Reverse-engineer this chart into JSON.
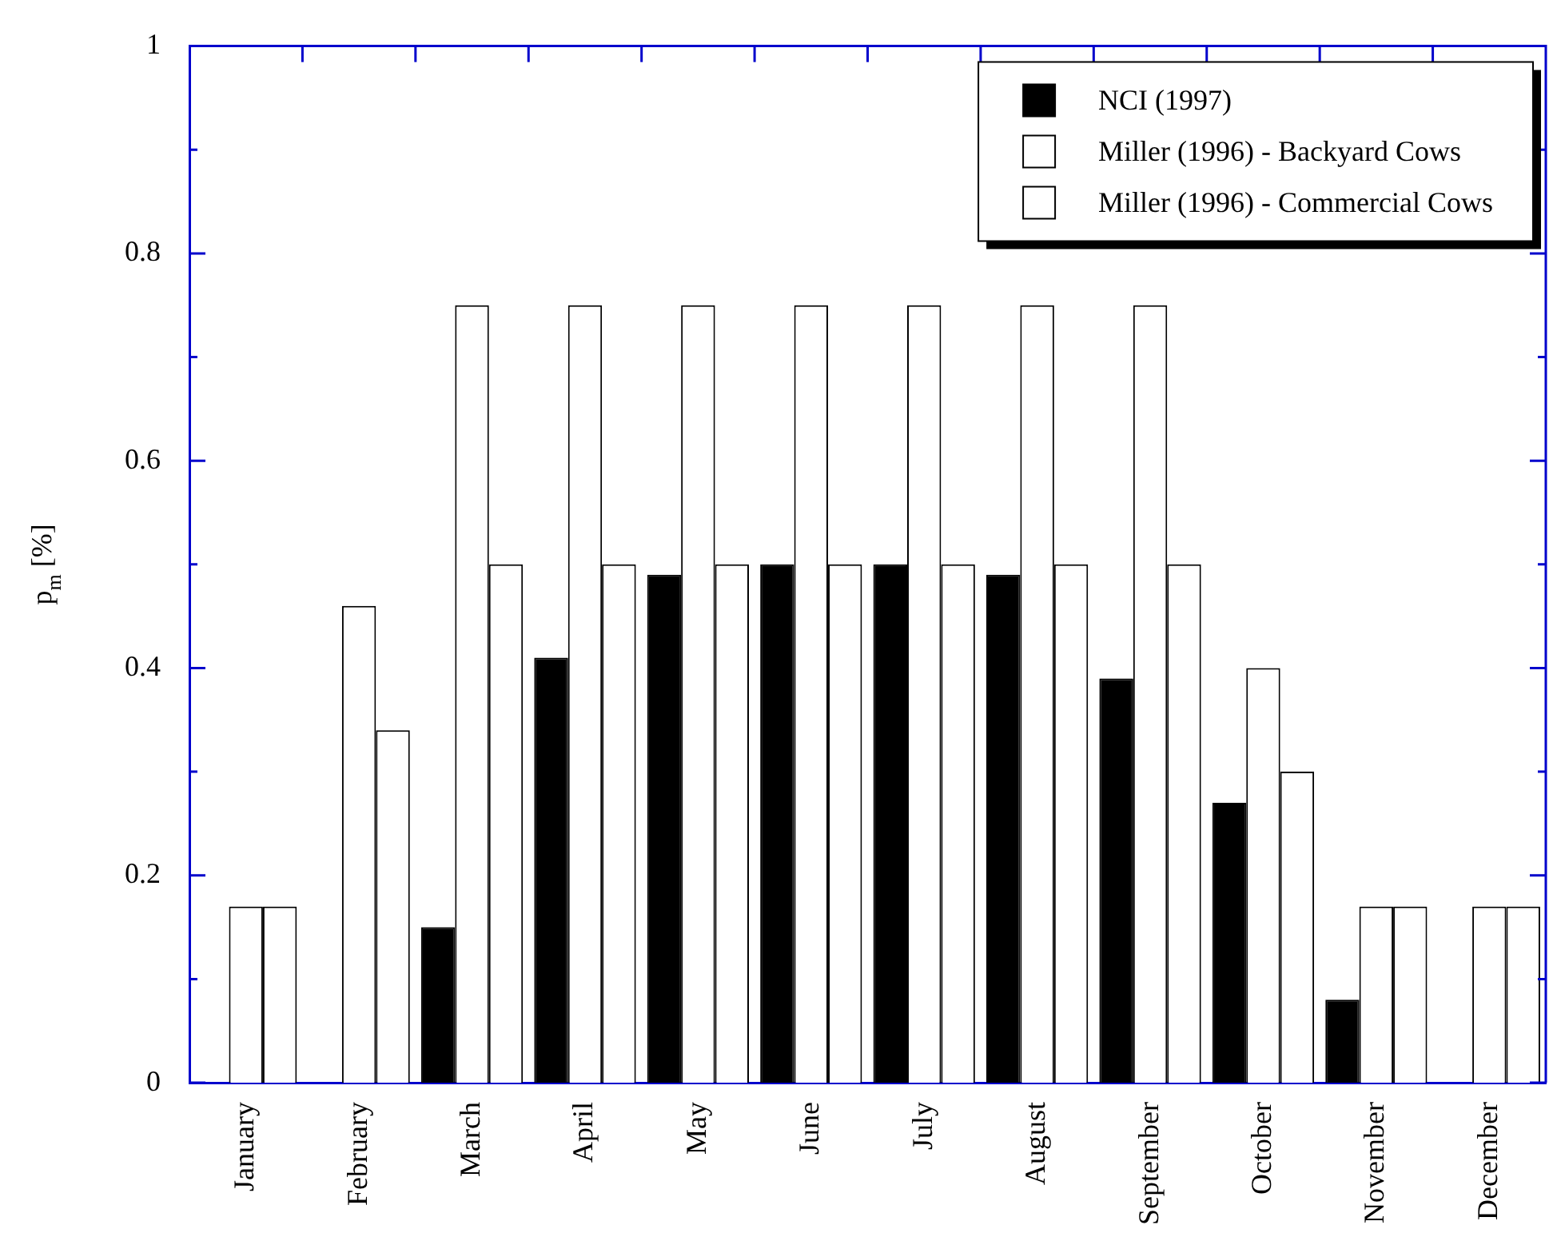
{
  "chart_data": {
    "type": "bar",
    "ylabel": "p$_{m}$ [%]",
    "categories": [
      "January",
      "February",
      "March",
      "April",
      "May",
      "June",
      "July",
      "August",
      "September",
      "October",
      "November",
      "December"
    ],
    "series": [
      {
        "name": "NCI (1997)",
        "color": "#000000",
        "values": [
          0,
          0,
          0.15,
          0.41,
          0.49,
          0.5,
          0.5,
          0.49,
          0.39,
          0.27,
          0.08,
          0
        ]
      },
      {
        "name": "Miller (1996) - Backyard Cows",
        "color": "#ffffff",
        "values": [
          0.17,
          0.46,
          0.75,
          0.75,
          0.75,
          0.75,
          0.75,
          0.75,
          0.75,
          0.4,
          0.17,
          0.17
        ]
      },
      {
        "name": "Miller (1996) - Commercial Cows",
        "color": "#ffffff",
        "values": [
          0.17,
          0.34,
          0.5,
          0.5,
          0.5,
          0.5,
          0.5,
          0.5,
          0.5,
          0.3,
          0.17,
          0.17
        ]
      }
    ],
    "ylim": [
      0,
      1
    ],
    "yticks": [
      0,
      {
        "value": 0.1,
        "label": null
      },
      0.2,
      {
        "value": 0.3,
        "label": null
      },
      0.4,
      {
        "value": 0.5,
        "label": null
      },
      0.6,
      {
        "value": 0.7,
        "label": null
      },
      0.8,
      {
        "value": 0.9,
        "label": null
      },
      1
    ],
    "grid": false,
    "legend": "top right"
  }
}
